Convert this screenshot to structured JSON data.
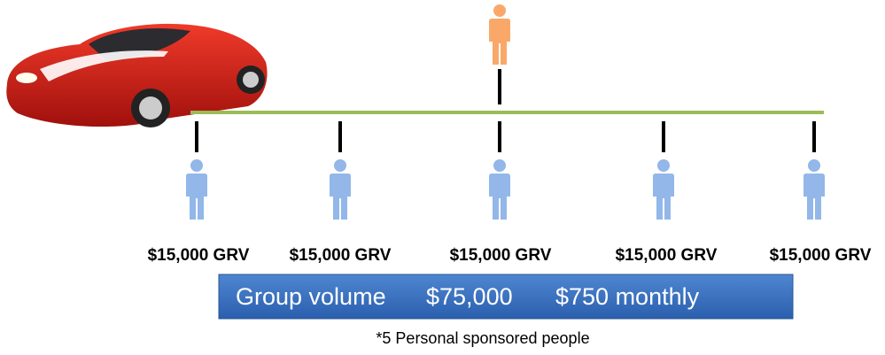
{
  "nodes": [
    {
      "label": "$15,000 GRV"
    },
    {
      "label": "$15,000 GRV"
    },
    {
      "label": "$15,000 GRV"
    },
    {
      "label": "$15,000 GRV"
    },
    {
      "label": "$15,000 GRV"
    }
  ],
  "banner": {
    "group_volume_label": "Group volume",
    "group_volume": "$75,000",
    "monthly": "$750 monthly"
  },
  "footnote": "*5 Personal sponsored people"
}
